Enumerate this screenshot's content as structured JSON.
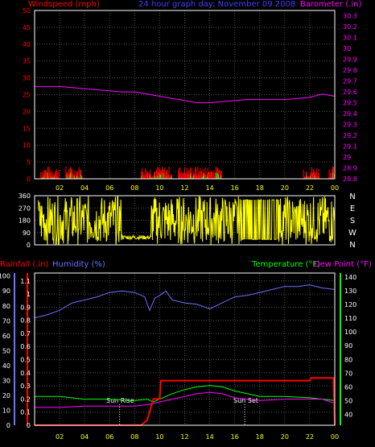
{
  "header": {
    "left_title": "Windspeed (mph)",
    "center_title": "24 hour graph day: November 09 2008",
    "right_title": "Barometer (.in)"
  },
  "colors": {
    "wind": "#ff0000",
    "gust": "#00ff00",
    "baro": "#ff00ff",
    "dir": "#ffff00",
    "rain": "#ff0000",
    "humidity": "#7070ff",
    "temp": "#00ff00",
    "dew": "#ff00ff",
    "title_blue": "#4040ff",
    "time_axis": "#ffff00"
  },
  "time_labels": [
    "02",
    "04",
    "06",
    "08",
    "10",
    "12",
    "14",
    "16",
    "18",
    "20",
    "22",
    "00"
  ],
  "chart_data": [
    {
      "type": "line",
      "name": "wind-baro",
      "y_left_ticks": [
        0,
        5,
        10,
        15,
        20,
        25,
        30,
        35,
        40,
        45,
        50
      ],
      "y_right_ticks": [
        "28.8",
        "28.9",
        "29",
        "29.1",
        "29.2",
        "29.3",
        "29.4",
        "29.5",
        "29.6",
        "29.7",
        "29.8",
        "29.9",
        "30",
        "30.1",
        "30.2",
        "30.3"
      ],
      "ylim_left": [
        0,
        50
      ],
      "ylim_right": [
        28.8,
        30.35
      ],
      "barometer": {
        "x": [
          0,
          1,
          2,
          3,
          4,
          5,
          6,
          7,
          8,
          9,
          10,
          11,
          12,
          13,
          14,
          15,
          16,
          17,
          18,
          19,
          20,
          21,
          22,
          23,
          24
        ],
        "y": [
          29.65,
          29.65,
          29.65,
          29.64,
          29.63,
          29.62,
          29.61,
          29.6,
          29.6,
          29.58,
          29.56,
          29.54,
          29.52,
          29.5,
          29.5,
          29.51,
          29.52,
          29.53,
          29.53,
          29.53,
          29.53,
          29.54,
          29.55,
          29.58,
          29.56
        ]
      },
      "wind_activity": [
        [
          0.5,
          2
        ],
        [
          2.5,
          3.8
        ],
        [
          8.5,
          11
        ],
        [
          11.5,
          15
        ],
        [
          21.5,
          22.8
        ],
        [
          23.5,
          24
        ]
      ]
    },
    {
      "type": "scatter",
      "name": "wind-direction",
      "y_ticks": [
        0,
        90,
        180,
        270,
        360
      ],
      "compass": [
        "N",
        "W",
        "S",
        "E",
        "N"
      ],
      "ylim": [
        0,
        360
      ]
    },
    {
      "type": "line",
      "name": "rain-humidity-temp-dew",
      "left_label_rain": "Rainfall (.in)",
      "left_label_humidity": "Humidity (%)",
      "right_label_temp": "Temperature (°F)",
      "right_label_dew": "Dew Point (°F)",
      "rain_ticks": [
        "0",
        "0.1",
        "0.2",
        "0.3",
        "0.4",
        "0.5",
        "0.6",
        "0.7",
        "0.8",
        "0.9",
        "1",
        "1.1"
      ],
      "humidity_ticks": [
        0,
        10,
        20,
        30,
        40,
        50,
        60,
        70,
        80,
        90,
        100
      ],
      "temp_ticks": [
        40,
        50,
        60,
        70,
        80,
        90,
        100,
        110,
        120,
        130,
        140
      ],
      "sun_rise_label": "Sun Rise",
      "sun_set_label": "Sun Set",
      "sun_rise_hour": 6.8,
      "sun_set_hour": 16.8,
      "rainfall": {
        "x": [
          0,
          8.5,
          9.0,
          9.5,
          10.0,
          10.1,
          22.0,
          22.1,
          23.9,
          24
        ],
        "y": [
          0,
          0,
          0.04,
          0.2,
          0.2,
          0.34,
          0.34,
          0.36,
          0.36,
          0
        ]
      },
      "humidity": {
        "x": [
          0,
          1,
          2,
          3,
          4,
          5,
          6,
          7,
          8,
          8.8,
          9.2,
          9.6,
          10.0,
          10.5,
          11,
          12,
          13,
          14,
          15,
          16,
          17,
          18,
          19,
          20,
          21,
          22,
          23,
          24
        ],
        "y": [
          72,
          74,
          77,
          82,
          84,
          86,
          89,
          90,
          89,
          86,
          77,
          85,
          87,
          90,
          84,
          82,
          81,
          78,
          82,
          86,
          87,
          89,
          91,
          93,
          93,
          94,
          92,
          91
        ]
      },
      "temperature": {
        "x": [
          0,
          2,
          4,
          6,
          8,
          9,
          9.5,
          10,
          11,
          12,
          13,
          14,
          15,
          16,
          17,
          18,
          20,
          22,
          23,
          24
        ],
        "y": [
          53,
          53,
          51,
          51,
          50,
          51,
          49,
          51,
          55,
          58,
          60,
          61,
          60,
          57,
          55,
          53,
          53,
          52,
          51,
          50
        ]
      },
      "dew_point": {
        "x": [
          0,
          2,
          4,
          6,
          8,
          9,
          10,
          11,
          12,
          13,
          14,
          15,
          16,
          17,
          18,
          20,
          22,
          23,
          24
        ],
        "y": [
          45,
          45,
          46,
          46,
          46,
          47,
          49,
          51,
          53,
          55,
          56,
          55,
          52,
          51,
          50,
          51,
          51,
          51,
          48
        ]
      }
    }
  ]
}
